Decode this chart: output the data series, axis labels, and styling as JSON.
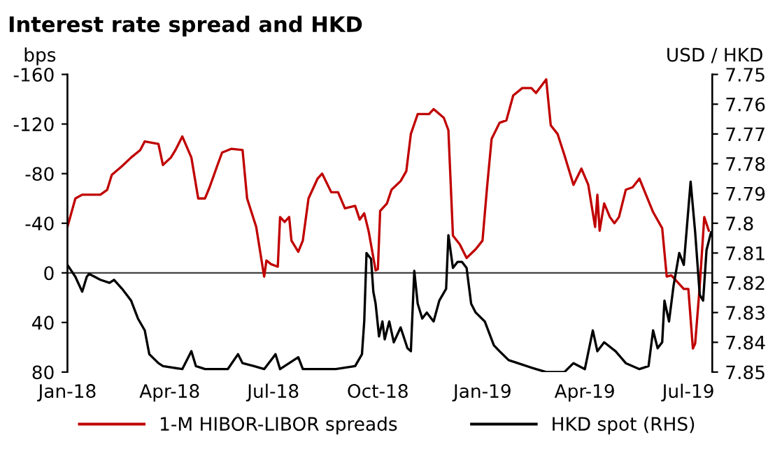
{
  "chart_data": {
    "type": "line",
    "title": "Interest rate spread and HKD",
    "ylabel": "bps",
    "y2label": "USD / HKD",
    "xlim": [
      "2018-01-01",
      "2019-07-22"
    ],
    "xticks": [
      {
        "value": "2018-01-01",
        "label": "Jan-18"
      },
      {
        "value": "2018-04-01",
        "label": "Apr-18"
      },
      {
        "value": "2018-07-01",
        "label": "Jul-18"
      },
      {
        "value": "2018-10-01",
        "label": "Oct-18"
      },
      {
        "value": "2019-01-01",
        "label": "Jan-19"
      },
      {
        "value": "2019-04-01",
        "label": "Apr-19"
      },
      {
        "value": "2019-07-01",
        "label": "Jul-19"
      }
    ],
    "ylim": [
      80,
      -160
    ],
    "yticks": [
      -160,
      -120,
      -80,
      -40,
      0,
      40,
      80
    ],
    "y2lim": [
      7.85,
      7.75
    ],
    "y2ticks": [
      7.75,
      7.76,
      7.77,
      7.78,
      7.79,
      7.8,
      7.81,
      7.82,
      7.83,
      7.84,
      7.85
    ],
    "ref_lines": [
      {
        "axis": "y",
        "value": 0,
        "color": "#404040"
      }
    ],
    "legend": "bottom",
    "grid": false,
    "marker": "none",
    "line_style": "solid",
    "series": [
      {
        "name": "1-M HIBOR-LIBOR spreads",
        "color": "#c00000",
        "x": [
          "2018-01-01",
          "2018-01-08",
          "2018-01-14",
          "2018-01-30",
          "2018-02-05",
          "2018-02-09",
          "2018-02-18",
          "2018-02-26",
          "2018-03-06",
          "2018-03-10",
          "2018-03-22",
          "2018-03-26",
          "2018-04-02",
          "2018-04-06",
          "2018-04-12",
          "2018-04-20",
          "2018-04-26",
          "2018-05-02",
          "2018-05-06",
          "2018-05-13",
          "2018-05-17",
          "2018-05-25",
          "2018-06-04",
          "2018-06-08",
          "2018-06-16",
          "2018-06-23",
          "2018-06-25",
          "2018-06-29",
          "2018-07-05",
          "2018-07-07",
          "2018-07-11",
          "2018-07-15",
          "2018-07-17",
          "2018-07-23",
          "2018-07-27",
          "2018-08-01",
          "2018-08-09",
          "2018-08-13",
          "2018-08-21",
          "2018-08-27",
          "2018-09-02",
          "2018-09-11",
          "2018-09-15",
          "2018-09-19",
          "2018-09-23",
          "2018-09-29",
          "2018-10-01",
          "2018-10-03",
          "2018-10-09",
          "2018-10-13",
          "2018-10-21",
          "2018-10-26",
          "2018-10-30",
          "2018-11-05",
          "2018-11-15",
          "2018-11-19",
          "2018-11-28",
          "2018-12-02",
          "2018-12-06",
          "2018-12-12",
          "2018-12-18",
          "2018-12-26",
          "2019-01-01",
          "2019-01-05",
          "2019-01-09",
          "2019-01-16",
          "2019-01-22",
          "2019-01-28",
          "2019-02-05",
          "2019-02-13",
          "2019-02-17",
          "2019-02-26",
          "2019-03-02",
          "2019-03-08",
          "2019-03-14",
          "2019-03-22",
          "2019-03-29",
          "2019-04-04",
          "2019-04-10",
          "2019-04-12",
          "2019-04-14",
          "2019-04-18",
          "2019-04-23",
          "2019-04-27",
          "2019-05-01",
          "2019-05-07",
          "2019-05-13",
          "2019-05-19",
          "2019-05-23",
          "2019-05-31",
          "2019-06-08",
          "2019-06-12",
          "2019-06-16",
          "2019-06-27",
          "2019-07-01",
          "2019-07-05",
          "2019-07-07",
          "2019-07-11",
          "2019-07-15",
          "2019-07-19"
        ],
        "values": [
          -37,
          -60,
          -63,
          -63,
          -67,
          -79,
          -86,
          -93,
          -99,
          -106,
          -104,
          -87,
          -93,
          -99,
          -110,
          -93,
          -60,
          -60,
          -69,
          -87,
          -97,
          -100,
          -99,
          -60,
          -37,
          3,
          -10,
          -7,
          -5,
          -45,
          -41,
          -45,
          -26,
          -17,
          -26,
          -60,
          -76,
          -80,
          -65,
          -65,
          -52,
          -54,
          -43,
          -48,
          -33,
          -2,
          -3,
          -50,
          -56,
          -67,
          -74,
          -82,
          -112,
          -128,
          -128,
          -132,
          -125,
          -115,
          -30,
          -23,
          -12,
          -19,
          -26,
          -69,
          -108,
          -121,
          -123,
          -143,
          -149,
          -149,
          -145,
          -156,
          -119,
          -112,
          -95,
          -71,
          -84,
          -71,
          -37,
          -63,
          -34,
          -56,
          -45,
          -40,
          -45,
          -67,
          -69,
          -76,
          -67,
          -49,
          -36,
          3,
          2,
          13,
          13,
          61,
          57,
          11,
          -45,
          -34
        ]
      },
      {
        "name": "HKD spot (RHS)",
        "color": "#000000",
        "axis": "y2",
        "x": [
          "2018-01-01",
          "2018-01-08",
          "2018-01-14",
          "2018-01-18",
          "2018-01-20",
          "2018-01-30",
          "2018-02-07",
          "2018-02-11",
          "2018-02-18",
          "2018-02-22",
          "2018-02-26",
          "2018-03-04",
          "2018-03-10",
          "2018-03-14",
          "2018-03-22",
          "2018-03-26",
          "2018-04-12",
          "2018-04-20",
          "2018-04-24",
          "2018-05-02",
          "2018-05-22",
          "2018-05-31",
          "2018-06-04",
          "2018-06-14",
          "2018-06-23",
          "2018-07-03",
          "2018-07-07",
          "2018-07-23",
          "2018-07-27",
          "2018-08-25",
          "2018-09-11",
          "2018-09-17",
          "2018-09-19",
          "2018-09-21",
          "2018-09-25",
          "2018-09-27",
          "2018-09-29",
          "2018-10-02",
          "2018-10-05",
          "2018-10-07",
          "2018-10-11",
          "2018-10-15",
          "2018-10-21",
          "2018-10-27",
          "2018-10-30",
          "2018-11-02",
          "2018-11-05",
          "2018-11-09",
          "2018-11-13",
          "2018-11-19",
          "2018-11-24",
          "2018-11-30",
          "2018-12-02",
          "2018-12-06",
          "2018-12-10",
          "2018-12-14",
          "2018-12-18",
          "2018-12-22",
          "2018-12-26",
          "2019-01-03",
          "2019-01-11",
          "2019-01-16",
          "2019-01-24",
          "2019-02-01",
          "2019-02-17",
          "2019-02-26",
          "2019-03-14",
          "2019-03-22",
          "2019-04-01",
          "2019-04-08",
          "2019-04-12",
          "2019-04-18",
          "2019-04-28",
          "2019-05-07",
          "2019-05-19",
          "2019-05-27",
          "2019-05-31",
          "2019-06-04",
          "2019-06-08",
          "2019-06-10",
          "2019-06-14",
          "2019-06-18",
          "2019-06-23",
          "2019-06-27",
          "2019-07-03",
          "2019-07-07",
          "2019-07-11",
          "2019-07-14",
          "2019-07-17",
          "2019-07-21"
        ],
        "values": [
          7.814,
          7.818,
          7.823,
          7.818,
          7.817,
          7.819,
          7.82,
          7.819,
          7.822,
          7.824,
          7.826,
          7.832,
          7.836,
          7.844,
          7.847,
          7.848,
          7.849,
          7.843,
          7.848,
          7.849,
          7.849,
          7.844,
          7.847,
          7.848,
          7.849,
          7.844,
          7.849,
          7.845,
          7.849,
          7.849,
          7.848,
          7.844,
          7.833,
          7.81,
          7.812,
          7.823,
          7.827,
          7.838,
          7.833,
          7.839,
          7.833,
          7.84,
          7.835,
          7.842,
          7.843,
          7.816,
          7.827,
          7.832,
          7.83,
          7.833,
          7.826,
          7.822,
          7.804,
          7.815,
          7.813,
          7.813,
          7.815,
          7.827,
          7.83,
          7.833,
          7.841,
          7.843,
          7.846,
          7.847,
          7.849,
          7.85,
          7.85,
          7.847,
          7.849,
          7.836,
          7.843,
          7.84,
          7.843,
          7.847,
          7.849,
          7.848,
          7.836,
          7.842,
          7.84,
          7.826,
          7.833,
          7.821,
          7.81,
          7.814,
          7.786,
          7.803,
          7.824,
          7.826,
          7.809,
          7.803
        ]
      }
    ]
  }
}
